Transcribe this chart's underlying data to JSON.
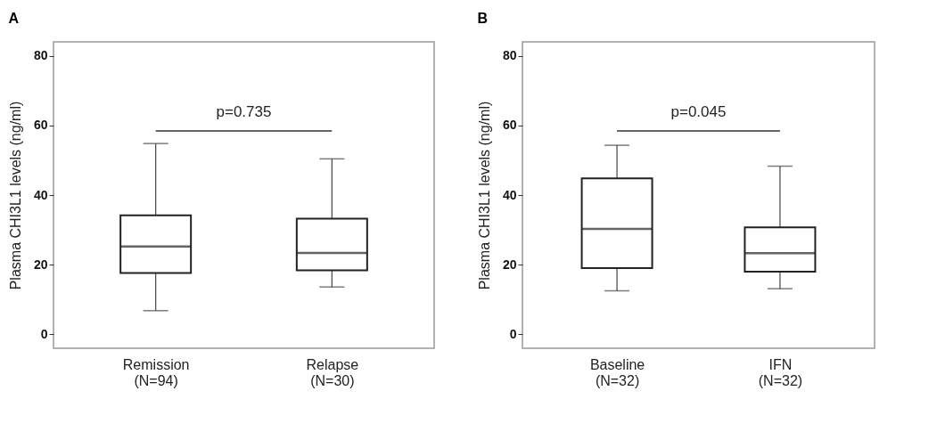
{
  "chart_data": [
    {
      "type": "box",
      "title": "A",
      "ylabel": "Plasma CHI3L1 levels (ng/ml)",
      "categories": [
        "Remission\n(N=94)",
        "Relapse\n(N=30)"
      ],
      "ylim": [
        -4,
        84
      ],
      "yticks": [
        0,
        20,
        40,
        60,
        80
      ],
      "annotations": [
        "p=0.735"
      ],
      "boxes": [
        {
          "low": 6.8,
          "q1": 17.6,
          "median": 25.2,
          "q3": 34.2,
          "high": 54.8
        },
        {
          "low": 13.6,
          "q1": 18.4,
          "median": 23.4,
          "q3": 33.2,
          "high": 50.4
        }
      ]
    },
    {
      "type": "box",
      "title": "B",
      "ylabel": "Plasma CHI3L1 levels (ng/ml)",
      "categories": [
        "Baseline\n(N=32)",
        "IFN\n(N=32)"
      ],
      "ylim": [
        -4,
        84
      ],
      "yticks": [
        0,
        20,
        40,
        60,
        80
      ],
      "annotations": [
        "p=0.045"
      ],
      "boxes": [
        {
          "low": 12.5,
          "q1": 19.0,
          "median": 30.3,
          "q3": 44.8,
          "high": 54.3
        },
        {
          "low": 13.1,
          "q1": 18.0,
          "median": 23.3,
          "q3": 30.7,
          "high": 48.3
        }
      ]
    }
  ]
}
